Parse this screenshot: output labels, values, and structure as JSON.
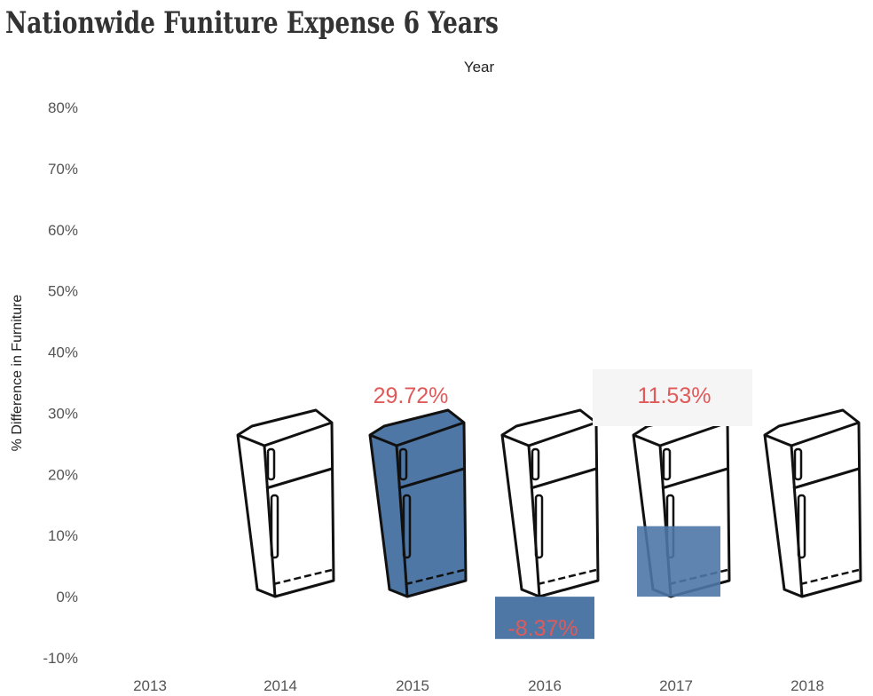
{
  "title": "Nationwide Funiture Expense 6 Years",
  "chart_data": {
    "type": "bar",
    "title": "Nationwide Funiture Expense 6 Years",
    "column_header": "Year",
    "ylabel": "% Difference in Furniture",
    "xlabel": "",
    "categories": [
      "2013",
      "2014",
      "2015",
      "2016",
      "2017",
      "2018"
    ],
    "values": [
      null,
      0,
      29.72,
      -8.37,
      11.53,
      0
    ],
    "labels": [
      "",
      "",
      "29.72%",
      "-8.37%",
      "11.53%",
      ""
    ],
    "ylim": [
      -10,
      80
    ],
    "yticks": [
      "-10%",
      "0%",
      "10%",
      "20%",
      "30%",
      "40%",
      "50%",
      "60%",
      "70%",
      "80%"
    ],
    "grid": false,
    "legend": "none",
    "mark": "refrigerator-icon",
    "colors": {
      "bar": "#4e77a6",
      "label": "#e05a5a"
    }
  }
}
